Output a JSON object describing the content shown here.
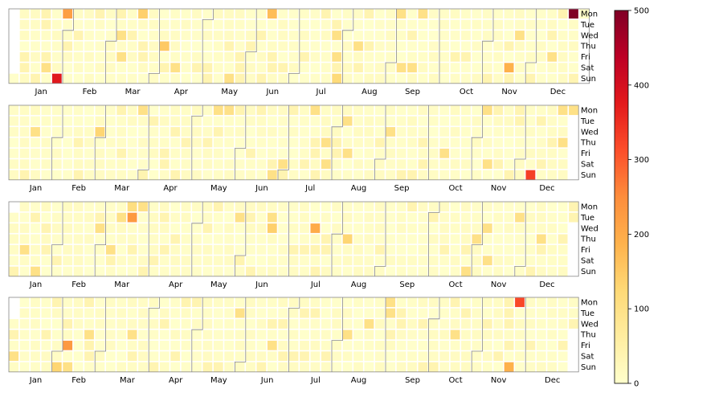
{
  "chart_data": {
    "type": "heatmap",
    "title": "",
    "colormap": "YlOrRd",
    "color_stops": [
      "#ffffcc",
      "#ffeda0",
      "#fed976",
      "#feb24c",
      "#fd8d3c",
      "#fc4e2a",
      "#e31a1c",
      "#bd0026",
      "#800026"
    ],
    "color_range": [
      0,
      500
    ],
    "colorbar_ticks": [
      "0",
      "100",
      "200",
      "300",
      "400",
      "500"
    ],
    "weekday_labels": [
      "Mon",
      "Tue",
      "Wed",
      "Thu",
      "Fri",
      "Sat",
      "Sun"
    ],
    "panels": [
      {
        "month_labels": [
          "Jan",
          "Feb",
          "Mar",
          "Apr",
          "May",
          "Jun",
          "Jul",
          "Aug",
          "Sep",
          "Oct",
          "Nov",
          "Dec"
        ],
        "first_weekday": 6,
        "days": 366,
        "notable_days": [
          {
            "week": 4,
            "weekday": 6,
            "value": 380
          },
          {
            "week": 5,
            "weekday": 0,
            "value": 220
          },
          {
            "week": 12,
            "weekday": 0,
            "value": 140
          },
          {
            "week": 14,
            "weekday": 3,
            "value": 150
          },
          {
            "week": 24,
            "weekday": 0,
            "value": 170
          },
          {
            "week": 30,
            "weekday": 6,
            "value": 120
          },
          {
            "week": 46,
            "weekday": 5,
            "value": 190
          },
          {
            "week": 52,
            "weekday": 0,
            "value": 500
          }
        ]
      },
      {
        "month_labels": [
          "Jan",
          "Feb",
          "Mar",
          "Apr",
          "May",
          "Jun",
          "Jul",
          "Aug",
          "Sep",
          "Oct",
          "Nov",
          "Dec"
        ],
        "first_weekday": 0,
        "days": 365,
        "notable_days": [
          {
            "week": 8,
            "weekday": 2,
            "value": 130
          },
          {
            "week": 29,
            "weekday": 3,
            "value": 100
          },
          {
            "week": 48,
            "weekday": 6,
            "value": 330
          }
        ]
      },
      {
        "month_labels": [
          "Jan",
          "Feb",
          "Mar",
          "Apr",
          "May",
          "Jun",
          "Jul",
          "Aug",
          "Sep",
          "Oct",
          "Nov",
          "Dec"
        ],
        "first_weekday": 1,
        "days": 365,
        "notable_days": [
          {
            "week": 11,
            "weekday": 1,
            "value": 230
          },
          {
            "week": 11,
            "weekday": 0,
            "value": 110
          },
          {
            "week": 24,
            "weekday": 2,
            "value": 140
          },
          {
            "week": 28,
            "weekday": 2,
            "value": 200
          },
          {
            "week": 31,
            "weekday": 3,
            "value": 130
          }
        ]
      },
      {
        "month_labels": [
          "Jan",
          "Feb",
          "Mar",
          "Apr",
          "May",
          "Jun",
          "Jul",
          "Aug",
          "Sep",
          "Oct",
          "Nov",
          "Dec"
        ],
        "first_weekday": 2,
        "days": 365,
        "notable_days": [
          {
            "week": 5,
            "weekday": 4,
            "value": 230
          },
          {
            "week": 4,
            "weekday": 6,
            "value": 130
          },
          {
            "week": 46,
            "weekday": 6,
            "value": 190
          },
          {
            "week": 47,
            "weekday": 0,
            "value": 320
          }
        ]
      }
    ]
  }
}
